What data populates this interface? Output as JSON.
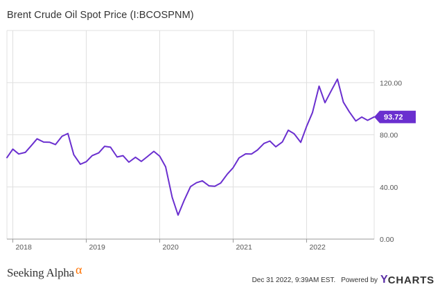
{
  "header": {
    "title": "Brent Crude Oil Spot Price (I:BCOSPNM)"
  },
  "footer": {
    "brand_word": "Seeking Alpha",
    "brand_symbol": "α",
    "timestamp": "Dec 31 2022, 9:39AM EST.",
    "powered_by": "Powered by",
    "ycharts_y": "Y",
    "ycharts_rest": "CHARTS"
  },
  "colors": {
    "line": "#6a2fcf",
    "badge": "#6a2fcf",
    "grid": "#e0e0e0",
    "axis_text": "#555555",
    "sa_alpha": "#ff7200",
    "ycharts_accent": "#5a2ea6"
  },
  "chart_data": {
    "type": "line",
    "title": "Brent Crude Oil Spot Price (I:BCOSPNM)",
    "xlabel": "",
    "ylabel": "",
    "ylim": [
      0,
      160
    ],
    "y_ticks": [
      0,
      40,
      80,
      120
    ],
    "y_tick_labels": [
      "0.00",
      "40.00",
      "80.00",
      "120.00"
    ],
    "x_ticks": [
      2018,
      2019,
      2020,
      2021,
      2022
    ],
    "x_tick_labels": [
      "2018",
      "2019",
      "2020",
      "2021",
      "2022"
    ],
    "xlim": [
      2017.92,
      2022.92
    ],
    "grid": true,
    "axis_side": "right",
    "last_value_label": "93.72",
    "series": [
      {
        "values": [
          [
            2017.92,
            62.5
          ],
          [
            2018.0,
            69.0
          ],
          [
            2018.08,
            65.3
          ],
          [
            2018.17,
            66.5
          ],
          [
            2018.25,
            71.6
          ],
          [
            2018.33,
            76.9
          ],
          [
            2018.42,
            74.4
          ],
          [
            2018.5,
            74.3
          ],
          [
            2018.58,
            72.5
          ],
          [
            2018.67,
            78.9
          ],
          [
            2018.75,
            81.0
          ],
          [
            2018.83,
            64.7
          ],
          [
            2018.92,
            57.4
          ],
          [
            2019.0,
            59.4
          ],
          [
            2019.08,
            64.0
          ],
          [
            2019.17,
            66.1
          ],
          [
            2019.25,
            71.2
          ],
          [
            2019.33,
            70.5
          ],
          [
            2019.42,
            63.0
          ],
          [
            2019.5,
            64.0
          ],
          [
            2019.58,
            59.0
          ],
          [
            2019.67,
            62.8
          ],
          [
            2019.75,
            59.6
          ],
          [
            2019.83,
            63.2
          ],
          [
            2019.92,
            67.3
          ],
          [
            2020.0,
            63.6
          ],
          [
            2020.08,
            55.5
          ],
          [
            2020.17,
            32.0
          ],
          [
            2020.25,
            18.4
          ],
          [
            2020.33,
            29.4
          ],
          [
            2020.42,
            40.3
          ],
          [
            2020.5,
            43.2
          ],
          [
            2020.58,
            44.7
          ],
          [
            2020.67,
            40.9
          ],
          [
            2020.75,
            40.5
          ],
          [
            2020.83,
            43.0
          ],
          [
            2020.92,
            49.8
          ],
          [
            2021.0,
            54.8
          ],
          [
            2021.08,
            62.3
          ],
          [
            2021.17,
            65.4
          ],
          [
            2021.25,
            65.3
          ],
          [
            2021.33,
            68.3
          ],
          [
            2021.42,
            73.4
          ],
          [
            2021.5,
            75.2
          ],
          [
            2021.58,
            70.8
          ],
          [
            2021.67,
            74.5
          ],
          [
            2021.75,
            83.5
          ],
          [
            2021.83,
            80.8
          ],
          [
            2021.92,
            74.2
          ],
          [
            2022.0,
            86.5
          ],
          [
            2022.08,
            97.1
          ],
          [
            2022.17,
            117.3
          ],
          [
            2022.25,
            104.6
          ],
          [
            2022.33,
            113.3
          ],
          [
            2022.42,
            122.7
          ],
          [
            2022.5,
            105.1
          ],
          [
            2022.58,
            97.7
          ],
          [
            2022.67,
            90.6
          ],
          [
            2022.75,
            93.6
          ],
          [
            2022.83,
            91.1
          ],
          [
            2022.92,
            93.72
          ]
        ]
      }
    ]
  }
}
